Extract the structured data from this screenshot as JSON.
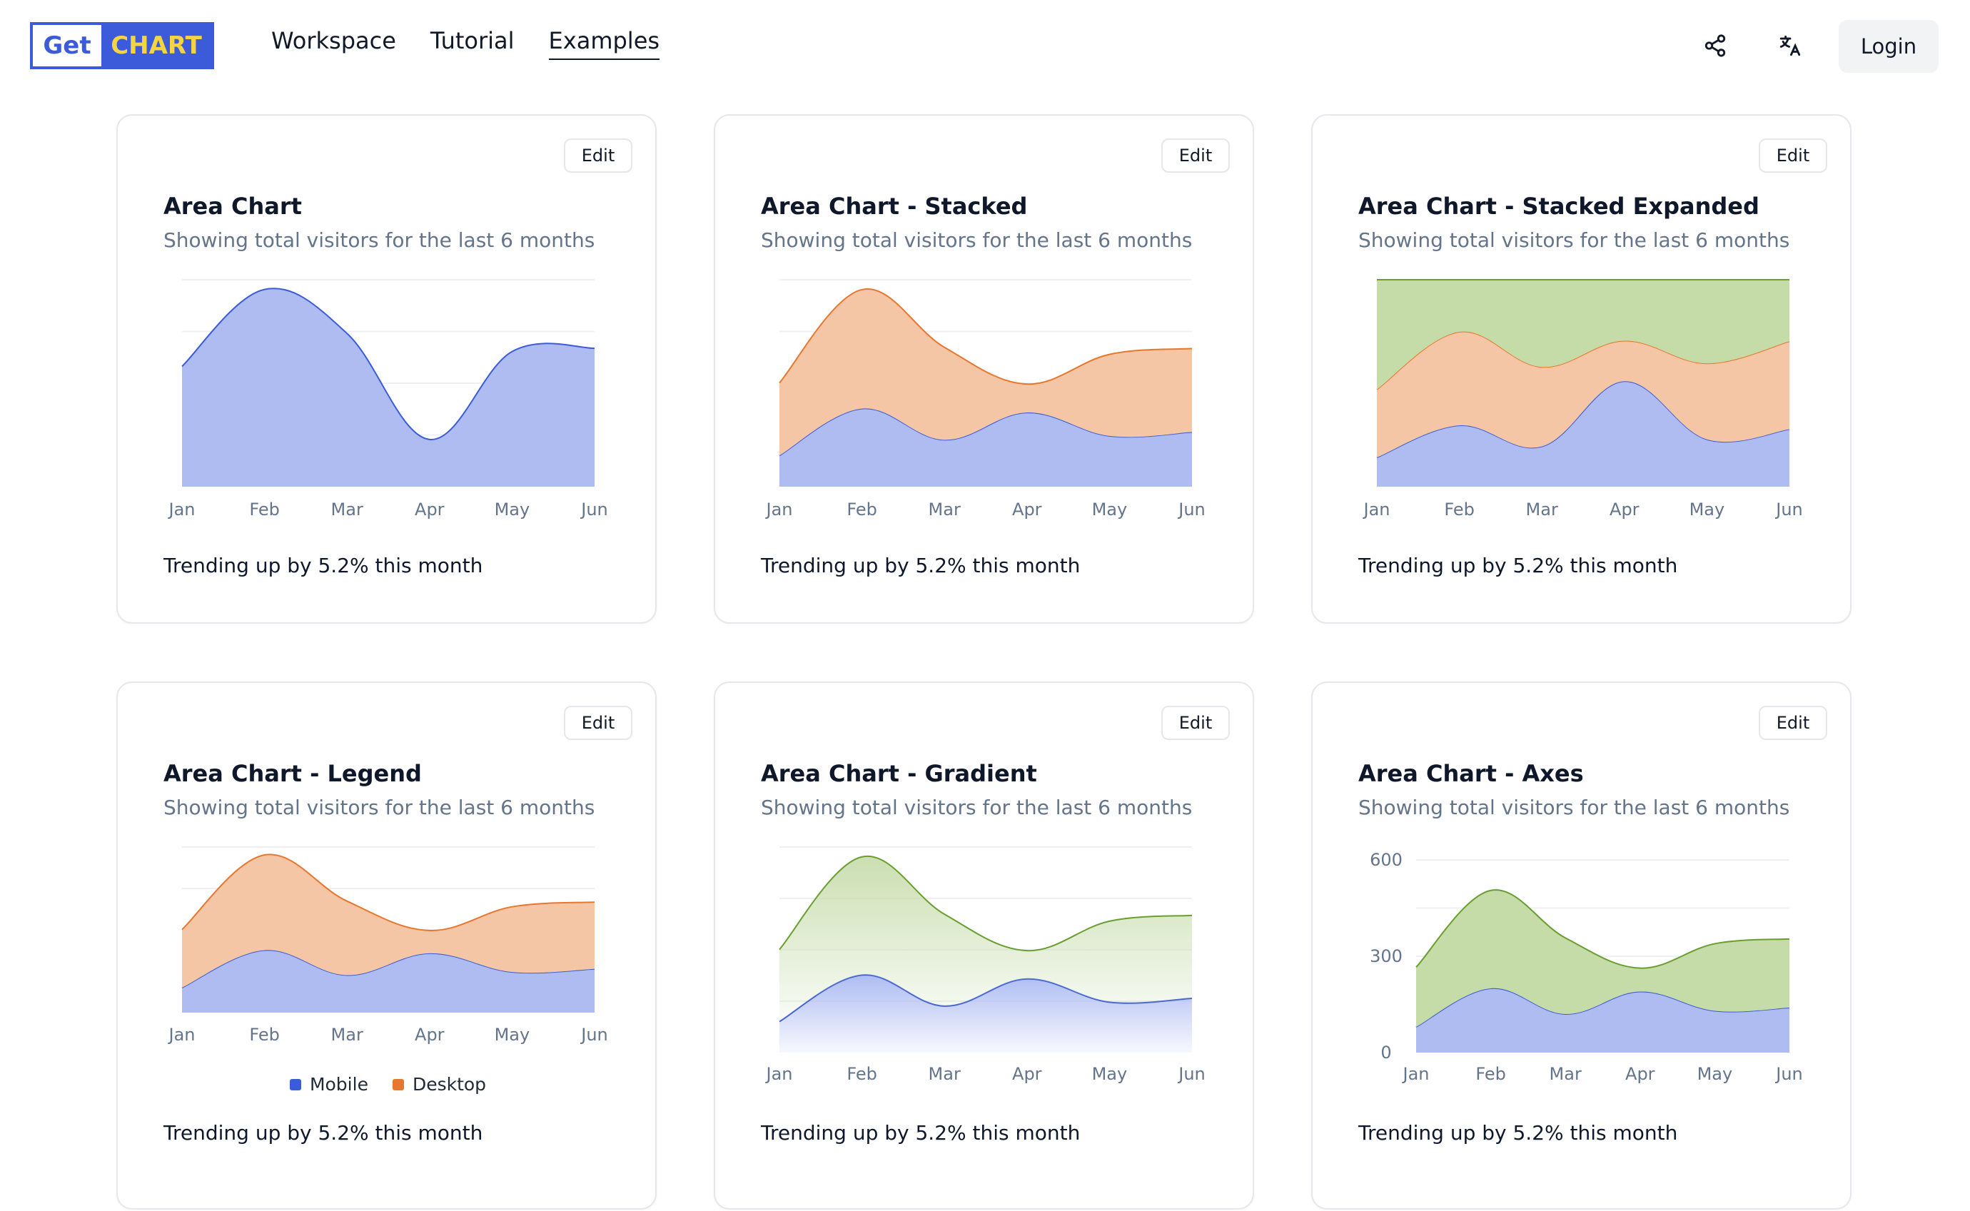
{
  "header": {
    "logo_left": "Get",
    "logo_right": "CHART",
    "nav": [
      "Workspace",
      "Tutorial",
      "Examples"
    ],
    "active_nav": "Examples",
    "share_icon": "share-icon",
    "translate_icon": "translate-icon",
    "login_label": "Login"
  },
  "colors": {
    "mobile_fill": "#aebcf2",
    "mobile_line": "#3b5bdb",
    "desktop_fill": "#f5c6a6",
    "desktop_line": "#e8772e",
    "green_fill": "#c5dba8",
    "green_line": "#6a9e2f",
    "grid": "#eef0f3",
    "tick": "#64748b"
  },
  "cards": [
    {
      "edit": "Edit",
      "title": "Area Chart",
      "subtitle": "Showing total visitors for the last 6 months",
      "footer": "Trending up by 5.2% this month"
    },
    {
      "edit": "Edit",
      "title": "Area Chart - Stacked",
      "subtitle": "Showing total visitors for the last 6 months",
      "footer": "Trending up by 5.2% this month"
    },
    {
      "edit": "Edit",
      "title": "Area Chart - Stacked Expanded",
      "subtitle": "Showing total visitors for the last 6 months",
      "footer": "Trending up by 5.2% this month"
    },
    {
      "edit": "Edit",
      "title": "Area Chart - Legend",
      "subtitle": "Showing total visitors for the last 6 months",
      "footer": "Trending up by 5.2% this month",
      "legend": [
        "Mobile",
        "Desktop"
      ]
    },
    {
      "edit": "Edit",
      "title": "Area Chart - Gradient",
      "subtitle": "Showing total visitors for the last 6 months",
      "footer": "Trending up by 5.2% this month"
    },
    {
      "edit": "Edit",
      "title": "Area Chart - Axes",
      "subtitle": "Showing total visitors for the last 6 months",
      "footer": "Trending up by 5.2% this month"
    }
  ],
  "chart_data": [
    {
      "type": "area",
      "categories": [
        "Jan",
        "Feb",
        "Mar",
        "Apr",
        "May",
        "Jun"
      ],
      "stacked": false,
      "series": [
        {
          "values": [
            186,
            305,
            237,
            73,
            209,
            214
          ]
        }
      ],
      "ylim": [
        0,
        320
      ],
      "grid": true
    },
    {
      "type": "area",
      "categories": [
        "Jan",
        "Feb",
        "Mar",
        "Apr",
        "May",
        "Jun"
      ],
      "stacked": true,
      "series": [
        {
          "name": "Mobile",
          "values": [
            80,
            200,
            120,
            190,
            130,
            140
          ]
        },
        {
          "name": "Desktop",
          "values": [
            186,
            305,
            237,
            73,
            209,
            214
          ]
        }
      ],
      "grid": true
    },
    {
      "type": "area",
      "categories": [
        "Jan",
        "Feb",
        "Mar",
        "Apr",
        "May",
        "Jun"
      ],
      "stacked": "expand",
      "series": [
        {
          "name": "Mobile",
          "values": [
            80,
            200,
            120,
            190,
            130,
            140
          ]
        },
        {
          "name": "Desktop",
          "values": [
            186,
            305,
            237,
            73,
            209,
            214
          ]
        },
        {
          "values": [
            300,
            170,
            260,
            110,
            230,
            150
          ]
        }
      ],
      "ylim": [
        0,
        1
      ],
      "grid": true
    },
    {
      "type": "area",
      "categories": [
        "Jan",
        "Feb",
        "Mar",
        "Apr",
        "May",
        "Jun"
      ],
      "stacked": true,
      "series": [
        {
          "name": "Mobile",
          "values": [
            80,
            200,
            120,
            190,
            130,
            140
          ]
        },
        {
          "name": "Desktop",
          "values": [
            186,
            305,
            237,
            73,
            209,
            214
          ]
        }
      ],
      "legend": "bottom",
      "grid": true
    },
    {
      "type": "area",
      "categories": [
        "Jan",
        "Feb",
        "Mar",
        "Apr",
        "May",
        "Jun"
      ],
      "stacked": true,
      "gradient": true,
      "series": [
        {
          "name": "Mobile",
          "values": [
            80,
            200,
            120,
            190,
            130,
            140
          ]
        },
        {
          "values": [
            186,
            305,
            237,
            73,
            209,
            214
          ]
        }
      ],
      "grid": true
    },
    {
      "type": "area",
      "categories": [
        "Jan",
        "Feb",
        "Mar",
        "Apr",
        "May",
        "Jun"
      ],
      "stacked": true,
      "series": [
        {
          "name": "Mobile",
          "values": [
            80,
            200,
            120,
            190,
            130,
            140
          ]
        },
        {
          "values": [
            186,
            305,
            237,
            73,
            209,
            214
          ]
        }
      ],
      "yticks": [
        0,
        300,
        600
      ],
      "ylim": [
        0,
        600
      ],
      "grid": true
    }
  ]
}
